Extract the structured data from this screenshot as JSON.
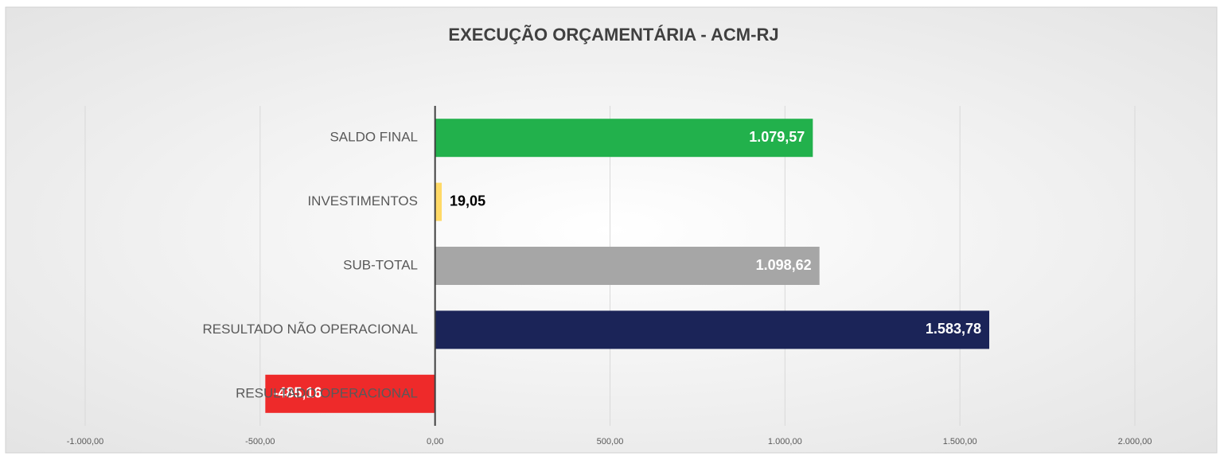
{
  "chart_data": {
    "type": "barh",
    "title": "EXECUÇÃO ORÇAMENTÁRIA - ACM-RJ",
    "categories": [
      "SALDO FINAL",
      "INVESTIMENTOS",
      "SUB-TOTAL",
      "RESULTADO NÃO OPERACIONAL",
      "RESULTADO OPERACIONAL"
    ],
    "values": [
      1079.57,
      19.05,
      1098.62,
      1583.78,
      -485.16
    ],
    "value_labels": [
      "1.079,57",
      "19,05",
      "1.098,62",
      "1.583,78",
      "-485,16"
    ],
    "colors": [
      "#22b14c",
      "#ffd966",
      "#a6a6a6",
      "#1b2458",
      "#ee2a2a"
    ],
    "xlim": [
      -1000,
      2000
    ],
    "xticks": [
      {
        "value": -1000,
        "label": "-1.000,00"
      },
      {
        "value": -500,
        "label": "-500,00"
      },
      {
        "value": 0,
        "label": "0,00"
      },
      {
        "value": 500,
        "label": "500,00"
      },
      {
        "value": 1000,
        "label": "1.000,00"
      },
      {
        "value": 1500,
        "label": "1.500,00"
      },
      {
        "value": 2000,
        "label": "2.000,00"
      }
    ],
    "grid": true
  }
}
